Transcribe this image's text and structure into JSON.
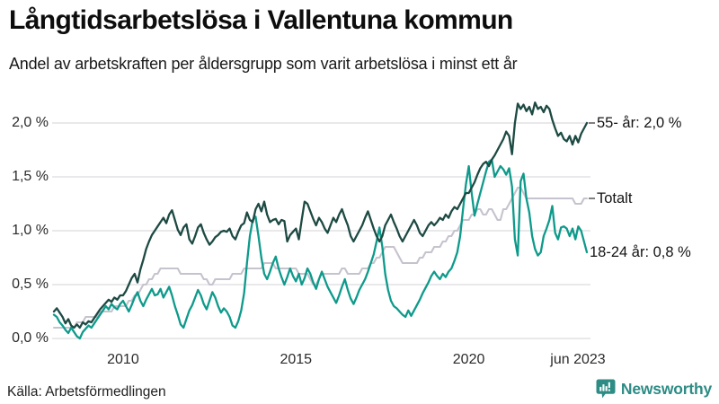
{
  "header": {
    "title": "Långtidsarbetslösa i Vallentuna kommun",
    "subtitle": "Andel av arbetskraften per åldersgrupp som varit arbetslösa i minst ett år"
  },
  "footer": {
    "source": "Källa: Arbetsförmedlingen",
    "brand": "Newsworthy"
  },
  "colors": {
    "series_55": "#1d4a43",
    "series_totalt": "#c5c3ce",
    "series_18_24": "#0e9a8b",
    "gridline": "#dcdce0",
    "brand_teal": "#2e8c85",
    "text_dark": "#141414"
  },
  "chart_data": {
    "type": "line",
    "x_start": "2008-01",
    "x_end": "2023-06",
    "frequency": "monthly",
    "grid": true,
    "legend_position": "right-annotations",
    "ylim": [
      0,
      2.2
    ],
    "y_ticks": [
      {
        "label": "0,0 %",
        "value": 0.0
      },
      {
        "label": "0,5 %",
        "value": 0.5
      },
      {
        "label": "1,0 %",
        "value": 1.0
      },
      {
        "label": "1,5 %",
        "value": 1.5
      },
      {
        "label": "2,0 %",
        "value": 2.0
      }
    ],
    "x_ticks": [
      {
        "label": "2010",
        "month_index": 24
      },
      {
        "label": "2015",
        "month_index": 84
      },
      {
        "label": "2020",
        "month_index": 144
      },
      {
        "label": "jun 2023",
        "month_index": 185
      }
    ],
    "series": [
      {
        "name": "55- år",
        "annotation": "55- år: 2,0 %",
        "end_value": 2.0,
        "tick_dash": true,
        "color": "#1d4a43",
        "stroke_width": 2.3,
        "values": [
          0.25,
          0.28,
          0.24,
          0.2,
          0.14,
          0.18,
          0.12,
          0.1,
          0.13,
          0.1,
          0.15,
          0.13,
          0.16,
          0.15,
          0.19,
          0.23,
          0.27,
          0.3,
          0.33,
          0.36,
          0.34,
          0.38,
          0.36,
          0.4,
          0.4,
          0.44,
          0.5,
          0.56,
          0.6,
          0.52,
          0.64,
          0.73,
          0.83,
          0.9,
          0.96,
          1.0,
          1.04,
          1.08,
          1.12,
          1.07,
          1.15,
          1.19,
          1.1,
          1.01,
          0.96,
          1.03,
          1.06,
          0.92,
          0.88,
          0.95,
          1.03,
          1.06,
          0.98,
          0.92,
          0.87,
          0.9,
          0.94,
          0.96,
          0.99,
          1.0,
          0.99,
          1.02,
          0.95,
          0.92,
          0.99,
          1.05,
          1.07,
          1.17,
          1.1,
          1.08,
          1.2,
          1.25,
          1.18,
          1.27,
          1.15,
          1.08,
          1.1,
          1.11,
          1.06,
          1.1,
          1.09,
          0.9,
          0.96,
          0.99,
          1.02,
          0.92,
          1.1,
          1.27,
          1.25,
          1.18,
          1.11,
          1.05,
          1.12,
          1.08,
          1.02,
          0.98,
          1.05,
          1.12,
          1.08,
          1.15,
          1.2,
          1.12,
          1.05,
          0.95,
          0.9,
          0.95,
          1.0,
          1.05,
          1.12,
          1.18,
          1.1,
          1.02,
          0.95,
          0.9,
          0.95,
          1.05,
          1.1,
          1.15,
          1.08,
          1.02,
          0.95,
          0.9,
          0.95,
          1.0,
          1.05,
          1.1,
          1.05,
          0.98,
          0.95,
          1.0,
          1.05,
          1.08,
          1.05,
          1.08,
          1.12,
          1.1,
          1.15,
          1.12,
          1.18,
          1.22,
          1.2,
          1.25,
          1.3,
          1.35,
          1.35,
          1.4,
          1.45,
          1.52,
          1.58,
          1.62,
          1.64,
          1.6,
          1.66,
          1.7,
          1.75,
          1.8,
          1.85,
          1.92,
          1.88,
          1.71,
          2.0,
          2.18,
          2.13,
          2.17,
          2.11,
          2.15,
          2.08,
          2.19,
          2.13,
          2.15,
          2.1,
          2.16,
          2.13,
          2.03,
          1.95,
          1.88,
          1.91,
          1.85,
          1.83,
          1.88,
          1.8,
          1.88,
          1.82,
          1.9,
          1.95,
          2.0
        ]
      },
      {
        "name": "Totalt",
        "annotation": "Totalt",
        "end_value": 1.3,
        "tick_dash": true,
        "color": "#c5c3ce",
        "stroke_width": 2.1,
        "values": [
          0.1,
          0.1,
          0.1,
          0.1,
          0.1,
          0.1,
          0.1,
          0.1,
          0.15,
          0.15,
          0.15,
          0.2,
          0.2,
          0.2,
          0.2,
          0.2,
          0.25,
          0.25,
          0.25,
          0.25,
          0.25,
          0.3,
          0.3,
          0.3,
          0.3,
          0.3,
          0.35,
          0.35,
          0.4,
          0.4,
          0.45,
          0.5,
          0.5,
          0.55,
          0.55,
          0.6,
          0.6,
          0.65,
          0.65,
          0.65,
          0.65,
          0.65,
          0.65,
          0.65,
          0.6,
          0.6,
          0.6,
          0.6,
          0.6,
          0.6,
          0.6,
          0.6,
          0.55,
          0.55,
          0.5,
          0.5,
          0.55,
          0.55,
          0.55,
          0.55,
          0.55,
          0.55,
          0.6,
          0.6,
          0.6,
          0.6,
          0.65,
          0.65,
          0.65,
          0.65,
          0.65,
          0.65,
          0.65,
          0.7,
          0.7,
          0.7,
          0.7,
          0.65,
          0.65,
          0.65,
          0.65,
          0.65,
          0.65,
          0.65,
          0.65,
          0.6,
          0.6,
          0.6,
          0.6,
          0.55,
          0.5,
          0.5,
          0.55,
          0.6,
          0.6,
          0.6,
          0.6,
          0.6,
          0.6,
          0.6,
          0.65,
          0.65,
          0.6,
          0.6,
          0.6,
          0.6,
          0.6,
          0.65,
          0.65,
          0.65,
          0.7,
          0.7,
          0.75,
          0.75,
          0.8,
          0.85,
          0.85,
          0.85,
          0.85,
          0.8,
          0.75,
          0.7,
          0.7,
          0.7,
          0.7,
          0.7,
          0.7,
          0.75,
          0.75,
          0.8,
          0.8,
          0.8,
          0.85,
          0.85,
          0.85,
          0.9,
          0.9,
          0.95,
          0.95,
          1.0,
          1.0,
          1.05,
          1.1,
          1.1,
          1.1,
          1.15,
          1.15,
          1.2,
          1.2,
          1.15,
          1.15,
          1.2,
          1.2,
          1.15,
          1.1,
          1.1,
          1.2,
          1.2,
          1.25,
          1.3,
          1.35,
          1.4,
          1.4,
          1.35,
          1.3,
          1.3,
          1.3,
          1.3,
          1.3,
          1.3,
          1.3,
          1.3,
          1.3,
          1.3,
          1.3,
          1.3,
          1.3,
          1.3,
          1.3,
          1.3,
          1.3,
          1.25,
          1.25,
          1.25,
          1.3,
          1.3
        ]
      },
      {
        "name": "18-24 år",
        "annotation": "18-24 år: 0,8 %",
        "end_value": 0.8,
        "tick_dash": false,
        "color": "#0e9a8b",
        "stroke_width": 2.3,
        "values": [
          0.22,
          0.2,
          0.15,
          0.12,
          0.08,
          0.05,
          0.1,
          0.06,
          0.02,
          0.0,
          0.06,
          0.09,
          0.12,
          0.1,
          0.14,
          0.18,
          0.22,
          0.26,
          0.3,
          0.27,
          0.32,
          0.29,
          0.27,
          0.32,
          0.35,
          0.3,
          0.25,
          0.31,
          0.38,
          0.43,
          0.35,
          0.3,
          0.36,
          0.41,
          0.46,
          0.4,
          0.41,
          0.46,
          0.38,
          0.43,
          0.48,
          0.4,
          0.3,
          0.22,
          0.13,
          0.1,
          0.18,
          0.26,
          0.31,
          0.38,
          0.45,
          0.4,
          0.32,
          0.27,
          0.35,
          0.43,
          0.38,
          0.3,
          0.24,
          0.28,
          0.25,
          0.2,
          0.12,
          0.1,
          0.16,
          0.26,
          0.42,
          0.7,
          0.95,
          1.1,
          1.13,
          0.95,
          0.75,
          0.6,
          0.55,
          0.62,
          0.7,
          0.76,
          0.65,
          0.57,
          0.5,
          0.57,
          0.65,
          0.58,
          0.53,
          0.6,
          0.5,
          0.56,
          0.65,
          0.6,
          0.52,
          0.46,
          0.55,
          0.62,
          0.55,
          0.48,
          0.43,
          0.38,
          0.33,
          0.4,
          0.48,
          0.55,
          0.45,
          0.37,
          0.32,
          0.38,
          0.45,
          0.5,
          0.55,
          0.62,
          0.7,
          0.78,
          0.9,
          1.03,
          0.85,
          0.6,
          0.45,
          0.35,
          0.3,
          0.28,
          0.25,
          0.22,
          0.2,
          0.26,
          0.21,
          0.26,
          0.31,
          0.36,
          0.42,
          0.47,
          0.52,
          0.58,
          0.62,
          0.58,
          0.55,
          0.6,
          0.57,
          0.62,
          0.65,
          0.72,
          0.8,
          0.95,
          1.2,
          1.43,
          1.6,
          1.35,
          1.14,
          1.25,
          1.35,
          1.45,
          1.55,
          1.64,
          1.66,
          1.5,
          1.55,
          1.6,
          1.57,
          1.52,
          1.58,
          1.41,
          0.92,
          0.77,
          1.46,
          1.53,
          1.3,
          1.17,
          0.95,
          0.83,
          0.77,
          0.8,
          0.95,
          1.02,
          1.1,
          1.23,
          0.98,
          0.92,
          1.03,
          1.04,
          1.02,
          0.95,
          1.02,
          0.92,
          1.04,
          1.0,
          0.9,
          0.8
        ]
      }
    ]
  }
}
